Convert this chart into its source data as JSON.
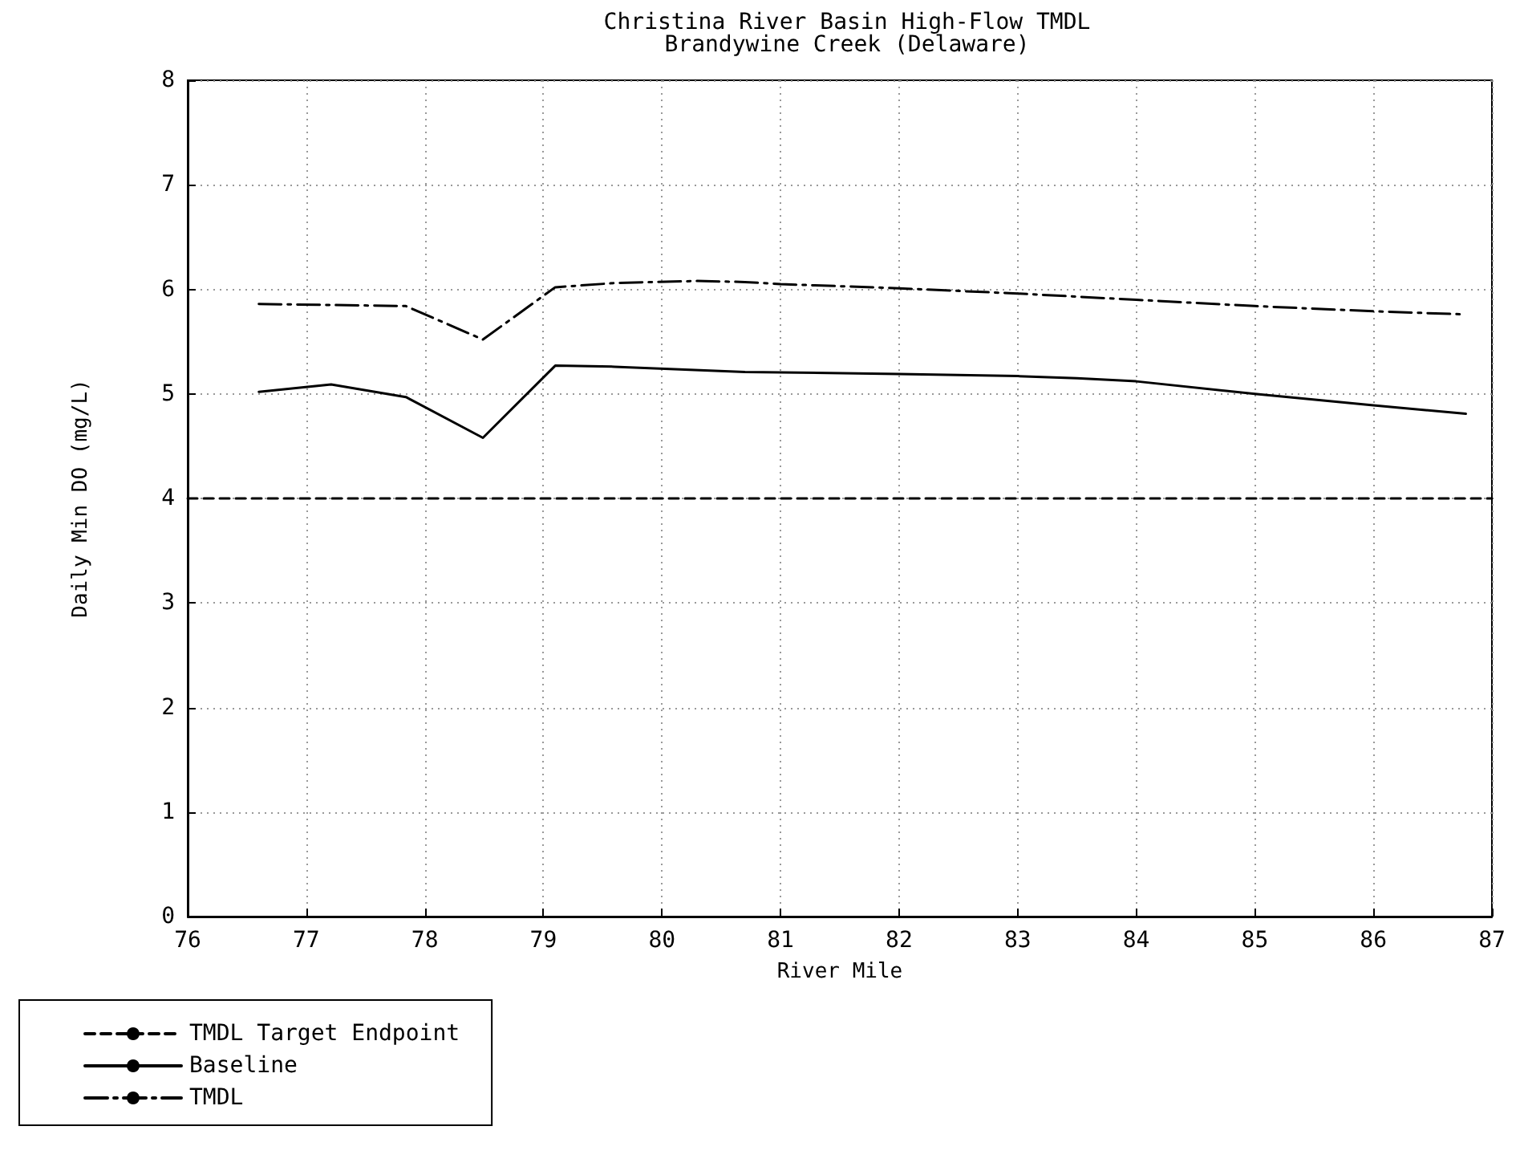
{
  "chart_data": {
    "type": "line",
    "title": "Christina River Basin High-Flow TMDL",
    "subtitle": "Brandywine Creek (Delaware)",
    "xlabel": "River Mile",
    "ylabel": "Daily Min DO (mg/L)",
    "xlim": [
      76,
      87
    ],
    "xticks": [
      76,
      77,
      78,
      79,
      80,
      81,
      82,
      83,
      84,
      85,
      86,
      87
    ],
    "ylim": [
      0,
      8
    ],
    "yticks": [
      0,
      1,
      2,
      3,
      4,
      5,
      6,
      7,
      8
    ],
    "grid": true,
    "legend": "bottom",
    "marker": "none",
    "series": [
      {
        "name": "TMDL Target Endpoint",
        "color": "#000000",
        "line_style": "dashed",
        "x": [
          76,
          87
        ],
        "values": [
          4,
          4
        ]
      },
      {
        "name": "Baseline",
        "color": "#000000",
        "line_style": "solid",
        "x": [
          76.6,
          77.21,
          77.84,
          78.49,
          79.1,
          79.6,
          80.7,
          82,
          83,
          83.5,
          84,
          85,
          86,
          86.78
        ],
        "values": [
          5.02,
          5.09,
          4.97,
          4.58,
          5.27,
          5.26,
          5.21,
          5.19,
          5.17,
          5.15,
          5.12,
          5.0,
          4.89,
          4.81
        ]
      },
      {
        "name": "TMDL",
        "color": "#000000",
        "line_style": "dashdot",
        "x": [
          76.6,
          77.21,
          77.84,
          78.49,
          79.1,
          79.6,
          80.3,
          80.7,
          81,
          82,
          83,
          84,
          85,
          86,
          86.78
        ],
        "values": [
          5.86,
          5.85,
          5.84,
          5.52,
          6.02,
          6.06,
          6.08,
          6.07,
          6.05,
          6.01,
          5.96,
          5.9,
          5.84,
          5.79,
          5.76
        ]
      }
    ]
  }
}
